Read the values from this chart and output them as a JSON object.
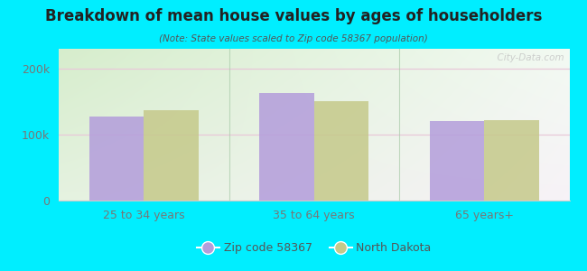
{
  "title": "Breakdown of mean house values by ages of householders",
  "subtitle": "(Note: State values scaled to Zip code 58367 population)",
  "categories": [
    "25 to 34 years",
    "35 to 64 years",
    "65 years+"
  ],
  "zip_values": [
    127000,
    163000,
    120000
  ],
  "state_values": [
    137000,
    150000,
    122000
  ],
  "zip_color": "#b39ddb",
  "state_color": "#c5c98a",
  "background_outer": "#00eeff",
  "ylim": [
    0,
    230000
  ],
  "yticks": [
    0,
    100000,
    200000
  ],
  "ytick_labels": [
    "0",
    "100k",
    "200k"
  ],
  "legend_labels": [
    "Zip code 58367",
    "North Dakota"
  ],
  "bar_width": 0.32,
  "watermark": "  City-Data.com",
  "grid_color": "#e8c8d8",
  "tick_color": "#777777",
  "separator_color": "#aaccaa",
  "title_color": "#222222",
  "subtitle_color": "#555555"
}
